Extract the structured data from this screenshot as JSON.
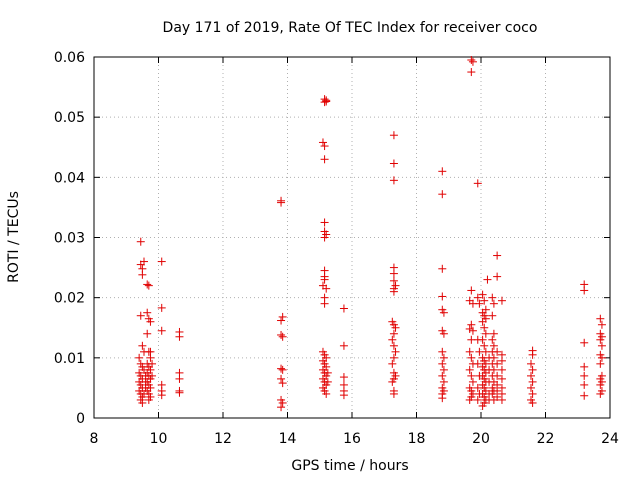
{
  "chart_data": {
    "type": "scatter",
    "title": "Day 171 of 2019, Rate Of TEC Index for receiver coco",
    "xlabel": "GPS time / hours",
    "ylabel": "ROTI / TECUs",
    "xlim": [
      8,
      24
    ],
    "ylim": [
      0,
      0.06
    ],
    "x_ticks": [
      8,
      10,
      12,
      14,
      16,
      18,
      20,
      22,
      24
    ],
    "x_tick_labels": [
      "8",
      "10",
      "12",
      "14",
      "16",
      "18",
      "20",
      "22",
      "24"
    ],
    "y_ticks": [
      0,
      0.01,
      0.02,
      0.03,
      0.04,
      0.05,
      0.06
    ],
    "y_tick_labels": [
      "0",
      "0.01",
      "0.02",
      "0.03",
      "0.04",
      "0.05",
      "0.06"
    ],
    "grid": true,
    "marker": "plus",
    "marker_color": "#e00000",
    "series": [
      {
        "name": "ROTI",
        "points": [
          [
            9.45,
            0.0293
          ],
          [
            9.45,
            0.0255
          ],
          [
            9.5,
            0.0248
          ],
          [
            9.5,
            0.0238
          ],
          [
            9.55,
            0.026
          ],
          [
            9.45,
            0.017
          ],
          [
            9.5,
            0.012
          ],
          [
            9.4,
            0.01
          ],
          [
            9.45,
            0.009
          ],
          [
            9.5,
            0.0085
          ],
          [
            9.4,
            0.0075
          ],
          [
            9.45,
            0.007
          ],
          [
            9.5,
            0.0065
          ],
          [
            9.4,
            0.006
          ],
          [
            9.45,
            0.0055
          ],
          [
            9.5,
            0.005
          ],
          [
            9.4,
            0.0045
          ],
          [
            9.45,
            0.004
          ],
          [
            9.5,
            0.0035
          ],
          [
            9.45,
            0.003
          ],
          [
            9.5,
            0.0025
          ],
          [
            9.55,
            0.011
          ],
          [
            9.55,
            0.008
          ],
          [
            9.6,
            0.007
          ],
          [
            9.6,
            0.006
          ],
          [
            9.6,
            0.005
          ],
          [
            9.55,
            0.004
          ],
          [
            9.65,
            0.0222
          ],
          [
            9.7,
            0.022
          ],
          [
            9.65,
            0.0175
          ],
          [
            9.7,
            0.0165
          ],
          [
            9.75,
            0.016
          ],
          [
            9.65,
            0.014
          ],
          [
            9.7,
            0.011
          ],
          [
            9.75,
            0.01
          ],
          [
            9.65,
            0.009
          ],
          [
            9.7,
            0.0085
          ],
          [
            9.75,
            0.008
          ],
          [
            9.65,
            0.0075
          ],
          [
            9.7,
            0.007
          ],
          [
            9.75,
            0.0065
          ],
          [
            9.65,
            0.006
          ],
          [
            9.7,
            0.0055
          ],
          [
            9.75,
            0.005
          ],
          [
            9.65,
            0.0045
          ],
          [
            9.7,
            0.004
          ],
          [
            9.75,
            0.0035
          ],
          [
            9.7,
            0.003
          ],
          [
            9.75,
            0.011
          ],
          [
            9.8,
            0.009
          ],
          [
            9.8,
            0.007
          ],
          [
            10.1,
            0.026
          ],
          [
            10.1,
            0.0183
          ],
          [
            10.1,
            0.0145
          ],
          [
            10.1,
            0.0055
          ],
          [
            10.1,
            0.0045
          ],
          [
            10.1,
            0.0038
          ],
          [
            10.65,
            0.0143
          ],
          [
            10.65,
            0.0135
          ],
          [
            10.65,
            0.0075
          ],
          [
            10.65,
            0.0065
          ],
          [
            10.65,
            0.0045
          ],
          [
            10.65,
            0.0042
          ],
          [
            13.8,
            0.0361
          ],
          [
            13.8,
            0.0358
          ],
          [
            13.85,
            0.0168
          ],
          [
            13.8,
            0.0162
          ],
          [
            13.8,
            0.0138
          ],
          [
            13.85,
            0.0135
          ],
          [
            13.8,
            0.0082
          ],
          [
            13.85,
            0.008
          ],
          [
            13.8,
            0.0065
          ],
          [
            13.85,
            0.0058
          ],
          [
            13.8,
            0.003
          ],
          [
            13.85,
            0.0025
          ],
          [
            13.8,
            0.0018
          ],
          [
            15.15,
            0.053
          ],
          [
            15.2,
            0.0528
          ],
          [
            15.15,
            0.0525
          ],
          [
            15.2,
            0.0526
          ],
          [
            15.1,
            0.0458
          ],
          [
            15.15,
            0.0452
          ],
          [
            15.15,
            0.043
          ],
          [
            15.15,
            0.0325
          ],
          [
            15.15,
            0.031
          ],
          [
            15.2,
            0.0305
          ],
          [
            15.15,
            0.03
          ],
          [
            15.15,
            0.0245
          ],
          [
            15.15,
            0.0235
          ],
          [
            15.15,
            0.023
          ],
          [
            15.1,
            0.022
          ],
          [
            15.2,
            0.0215
          ],
          [
            15.15,
            0.02
          ],
          [
            15.15,
            0.019
          ],
          [
            15.1,
            0.011
          ],
          [
            15.15,
            0.0105
          ],
          [
            15.2,
            0.01
          ],
          [
            15.1,
            0.0095
          ],
          [
            15.15,
            0.009
          ],
          [
            15.2,
            0.0085
          ],
          [
            15.1,
            0.008
          ],
          [
            15.15,
            0.0075
          ],
          [
            15.2,
            0.007
          ],
          [
            15.1,
            0.0065
          ],
          [
            15.15,
            0.006
          ],
          [
            15.2,
            0.0055
          ],
          [
            15.1,
            0.005
          ],
          [
            15.15,
            0.0045
          ],
          [
            15.2,
            0.004
          ],
          [
            15.25,
            0.006
          ],
          [
            15.25,
            0.0075
          ],
          [
            15.75,
            0.0182
          ],
          [
            15.75,
            0.012
          ],
          [
            15.75,
            0.0068
          ],
          [
            15.75,
            0.0055
          ],
          [
            15.75,
            0.0045
          ],
          [
            15.75,
            0.0038
          ],
          [
            17.3,
            0.047
          ],
          [
            17.3,
            0.0423
          ],
          [
            17.3,
            0.0395
          ],
          [
            17.3,
            0.025
          ],
          [
            17.3,
            0.024
          ],
          [
            17.3,
            0.0228
          ],
          [
            17.35,
            0.022
          ],
          [
            17.3,
            0.0215
          ],
          [
            17.3,
            0.021
          ],
          [
            17.25,
            0.016
          ],
          [
            17.3,
            0.0155
          ],
          [
            17.35,
            0.015
          ],
          [
            17.3,
            0.014
          ],
          [
            17.25,
            0.013
          ],
          [
            17.3,
            0.012
          ],
          [
            17.35,
            0.011
          ],
          [
            17.3,
            0.01
          ],
          [
            17.25,
            0.009
          ],
          [
            17.3,
            0.0075
          ],
          [
            17.35,
            0.007
          ],
          [
            17.3,
            0.0065
          ],
          [
            17.25,
            0.006
          ],
          [
            17.3,
            0.0045
          ],
          [
            17.3,
            0.004
          ],
          [
            18.8,
            0.041
          ],
          [
            18.8,
            0.0372
          ],
          [
            18.8,
            0.0248
          ],
          [
            18.8,
            0.0202
          ],
          [
            18.8,
            0.018
          ],
          [
            18.85,
            0.0175
          ],
          [
            18.8,
            0.0145
          ],
          [
            18.85,
            0.014
          ],
          [
            18.8,
            0.011
          ],
          [
            18.85,
            0.01
          ],
          [
            18.8,
            0.009
          ],
          [
            18.85,
            0.008
          ],
          [
            18.8,
            0.007
          ],
          [
            18.85,
            0.006
          ],
          [
            18.8,
            0.005
          ],
          [
            18.85,
            0.0045
          ],
          [
            18.8,
            0.004
          ],
          [
            18.8,
            0.0033
          ],
          [
            19.7,
            0.0595
          ],
          [
            19.75,
            0.0592
          ],
          [
            19.7,
            0.0575
          ],
          [
            19.7,
            0.0212
          ],
          [
            19.65,
            0.0195
          ],
          [
            19.75,
            0.019
          ],
          [
            19.7,
            0.0155
          ],
          [
            19.65,
            0.0148
          ],
          [
            19.75,
            0.0145
          ],
          [
            19.7,
            0.013
          ],
          [
            19.65,
            0.011
          ],
          [
            19.7,
            0.01
          ],
          [
            19.75,
            0.009
          ],
          [
            19.65,
            0.008
          ],
          [
            19.7,
            0.007
          ],
          [
            19.75,
            0.006
          ],
          [
            19.65,
            0.005
          ],
          [
            19.7,
            0.0045
          ],
          [
            19.75,
            0.004
          ],
          [
            19.7,
            0.0035
          ],
          [
            19.65,
            0.003
          ],
          [
            19.9,
            0.039
          ],
          [
            19.9,
            0.02
          ],
          [
            19.95,
            0.019
          ],
          [
            19.9,
            0.013
          ],
          [
            19.95,
            0.011
          ],
          [
            19.9,
            0.009
          ],
          [
            19.95,
            0.007
          ],
          [
            19.9,
            0.005
          ],
          [
            19.95,
            0.004
          ],
          [
            19.9,
            0.003
          ],
          [
            20.05,
            0.0205
          ],
          [
            20.1,
            0.0195
          ],
          [
            20.15,
            0.018
          ],
          [
            20.05,
            0.0175
          ],
          [
            20.1,
            0.017
          ],
          [
            20.15,
            0.0165
          ],
          [
            20.05,
            0.016
          ],
          [
            20.1,
            0.015
          ],
          [
            20.15,
            0.014
          ],
          [
            20.05,
            0.013
          ],
          [
            20.1,
            0.012
          ],
          [
            20.15,
            0.011
          ],
          [
            20.05,
            0.01
          ],
          [
            20.1,
            0.0095
          ],
          [
            20.15,
            0.009
          ],
          [
            20.05,
            0.0085
          ],
          [
            20.1,
            0.008
          ],
          [
            20.15,
            0.0075
          ],
          [
            20.05,
            0.007
          ],
          [
            20.1,
            0.0065
          ],
          [
            20.15,
            0.006
          ],
          [
            20.05,
            0.0055
          ],
          [
            20.1,
            0.005
          ],
          [
            20.15,
            0.0045
          ],
          [
            20.05,
            0.004
          ],
          [
            20.1,
            0.0035
          ],
          [
            20.15,
            0.003
          ],
          [
            20.1,
            0.0025
          ],
          [
            20.05,
            0.002
          ],
          [
            20.2,
            0.023
          ],
          [
            20.25,
            0.01
          ],
          [
            20.25,
            0.008
          ],
          [
            20.25,
            0.006
          ],
          [
            20.25,
            0.004
          ],
          [
            20.25,
            0.003
          ],
          [
            20.35,
            0.02
          ],
          [
            20.4,
            0.019
          ],
          [
            20.35,
            0.017
          ],
          [
            20.4,
            0.014
          ],
          [
            20.35,
            0.013
          ],
          [
            20.4,
            0.012
          ],
          [
            20.35,
            0.011
          ],
          [
            20.4,
            0.01
          ],
          [
            20.35,
            0.009
          ],
          [
            20.4,
            0.008
          ],
          [
            20.35,
            0.007
          ],
          [
            20.4,
            0.006
          ],
          [
            20.35,
            0.005
          ],
          [
            20.4,
            0.0045
          ],
          [
            20.35,
            0.004
          ],
          [
            20.4,
            0.003
          ],
          [
            20.5,
            0.027
          ],
          [
            20.5,
            0.0235
          ],
          [
            20.5,
            0.011
          ],
          [
            20.5,
            0.009
          ],
          [
            20.5,
            0.007
          ],
          [
            20.5,
            0.0055
          ],
          [
            20.5,
            0.0045
          ],
          [
            20.5,
            0.0035
          ],
          [
            20.65,
            0.0195
          ],
          [
            20.65,
            0.0105
          ],
          [
            20.65,
            0.0095
          ],
          [
            20.65,
            0.008
          ],
          [
            20.65,
            0.0065
          ],
          [
            20.65,
            0.005
          ],
          [
            20.65,
            0.004
          ],
          [
            20.65,
            0.003
          ],
          [
            21.6,
            0.0112
          ],
          [
            21.6,
            0.0105
          ],
          [
            21.55,
            0.009
          ],
          [
            21.6,
            0.008
          ],
          [
            21.55,
            0.007
          ],
          [
            21.6,
            0.006
          ],
          [
            21.55,
            0.005
          ],
          [
            21.6,
            0.004
          ],
          [
            21.55,
            0.003
          ],
          [
            21.6,
            0.0025
          ],
          [
            23.2,
            0.0222
          ],
          [
            23.2,
            0.0212
          ],
          [
            23.2,
            0.0125
          ],
          [
            23.2,
            0.0085
          ],
          [
            23.2,
            0.007
          ],
          [
            23.2,
            0.0055
          ],
          [
            23.2,
            0.0037
          ],
          [
            23.7,
            0.0165
          ],
          [
            23.75,
            0.0155
          ],
          [
            23.7,
            0.014
          ],
          [
            23.75,
            0.0135
          ],
          [
            23.7,
            0.013
          ],
          [
            23.75,
            0.012
          ],
          [
            23.7,
            0.0105
          ],
          [
            23.75,
            0.01
          ],
          [
            23.7,
            0.009
          ],
          [
            23.75,
            0.007
          ],
          [
            23.7,
            0.0065
          ],
          [
            23.75,
            0.006
          ],
          [
            23.7,
            0.0055
          ],
          [
            23.75,
            0.0045
          ],
          [
            23.7,
            0.004
          ]
        ]
      }
    ]
  }
}
